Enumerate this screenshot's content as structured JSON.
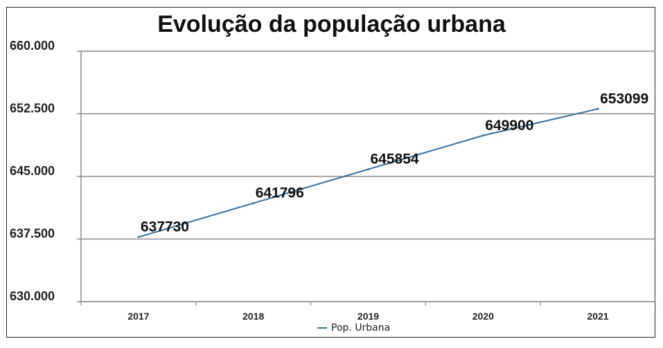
{
  "chart_data": {
    "type": "line",
    "title": "Evolução da população urbana",
    "categories": [
      "2017",
      "2018",
      "2019",
      "2020",
      "2021"
    ],
    "series": [
      {
        "name": "Pop. Urbana",
        "values": [
          637730,
          641796,
          645854,
          649900,
          653099
        ],
        "data_labels": [
          "637730",
          "641796",
          "645854",
          "649900",
          "653099"
        ]
      }
    ],
    "y_ticks": [
      {
        "value": 660000,
        "label": "660.000"
      },
      {
        "value": 652500,
        "label": "652.500"
      },
      {
        "value": 645000,
        "label": "645.000"
      },
      {
        "value": 637500,
        "label": "637.500"
      },
      {
        "value": 630000,
        "label": "630.000"
      }
    ],
    "ylim": [
      630000,
      660000
    ],
    "xlabel": "",
    "ylabel": "",
    "grid": true,
    "legend": "bottom",
    "line_color": "#3a6f9a"
  }
}
